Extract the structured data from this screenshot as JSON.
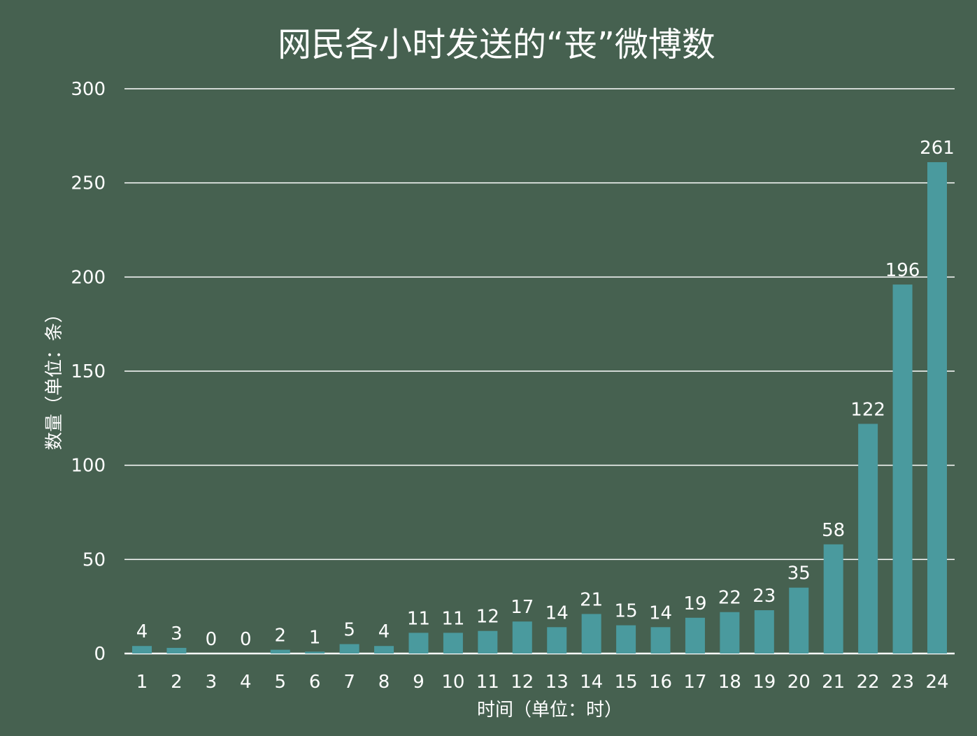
{
  "colors": {
    "background": "#466150",
    "bar": "#4a9a9e",
    "grid": "#ffffff",
    "text": "#ffffff"
  },
  "chart_data": {
    "type": "bar",
    "title": "网民各小时发送的“丧”微博数",
    "xlabel": "时间（单位：时）",
    "ylabel": "数量（单位：条）",
    "categories": [
      "1",
      "2",
      "3",
      "4",
      "5",
      "6",
      "7",
      "8",
      "9",
      "10",
      "11",
      "12",
      "13",
      "14",
      "15",
      "16",
      "17",
      "18",
      "19",
      "20",
      "21",
      "22",
      "23",
      "24"
    ],
    "values": [
      4,
      3,
      0,
      0,
      2,
      1,
      5,
      4,
      11,
      11,
      12,
      17,
      14,
      21,
      15,
      14,
      19,
      22,
      23,
      35,
      58,
      122,
      196,
      261
    ],
    "ylim": [
      0,
      300
    ],
    "yticks": [
      0,
      50,
      100,
      150,
      200,
      250,
      300
    ],
    "grid": true,
    "data_labels": true
  }
}
